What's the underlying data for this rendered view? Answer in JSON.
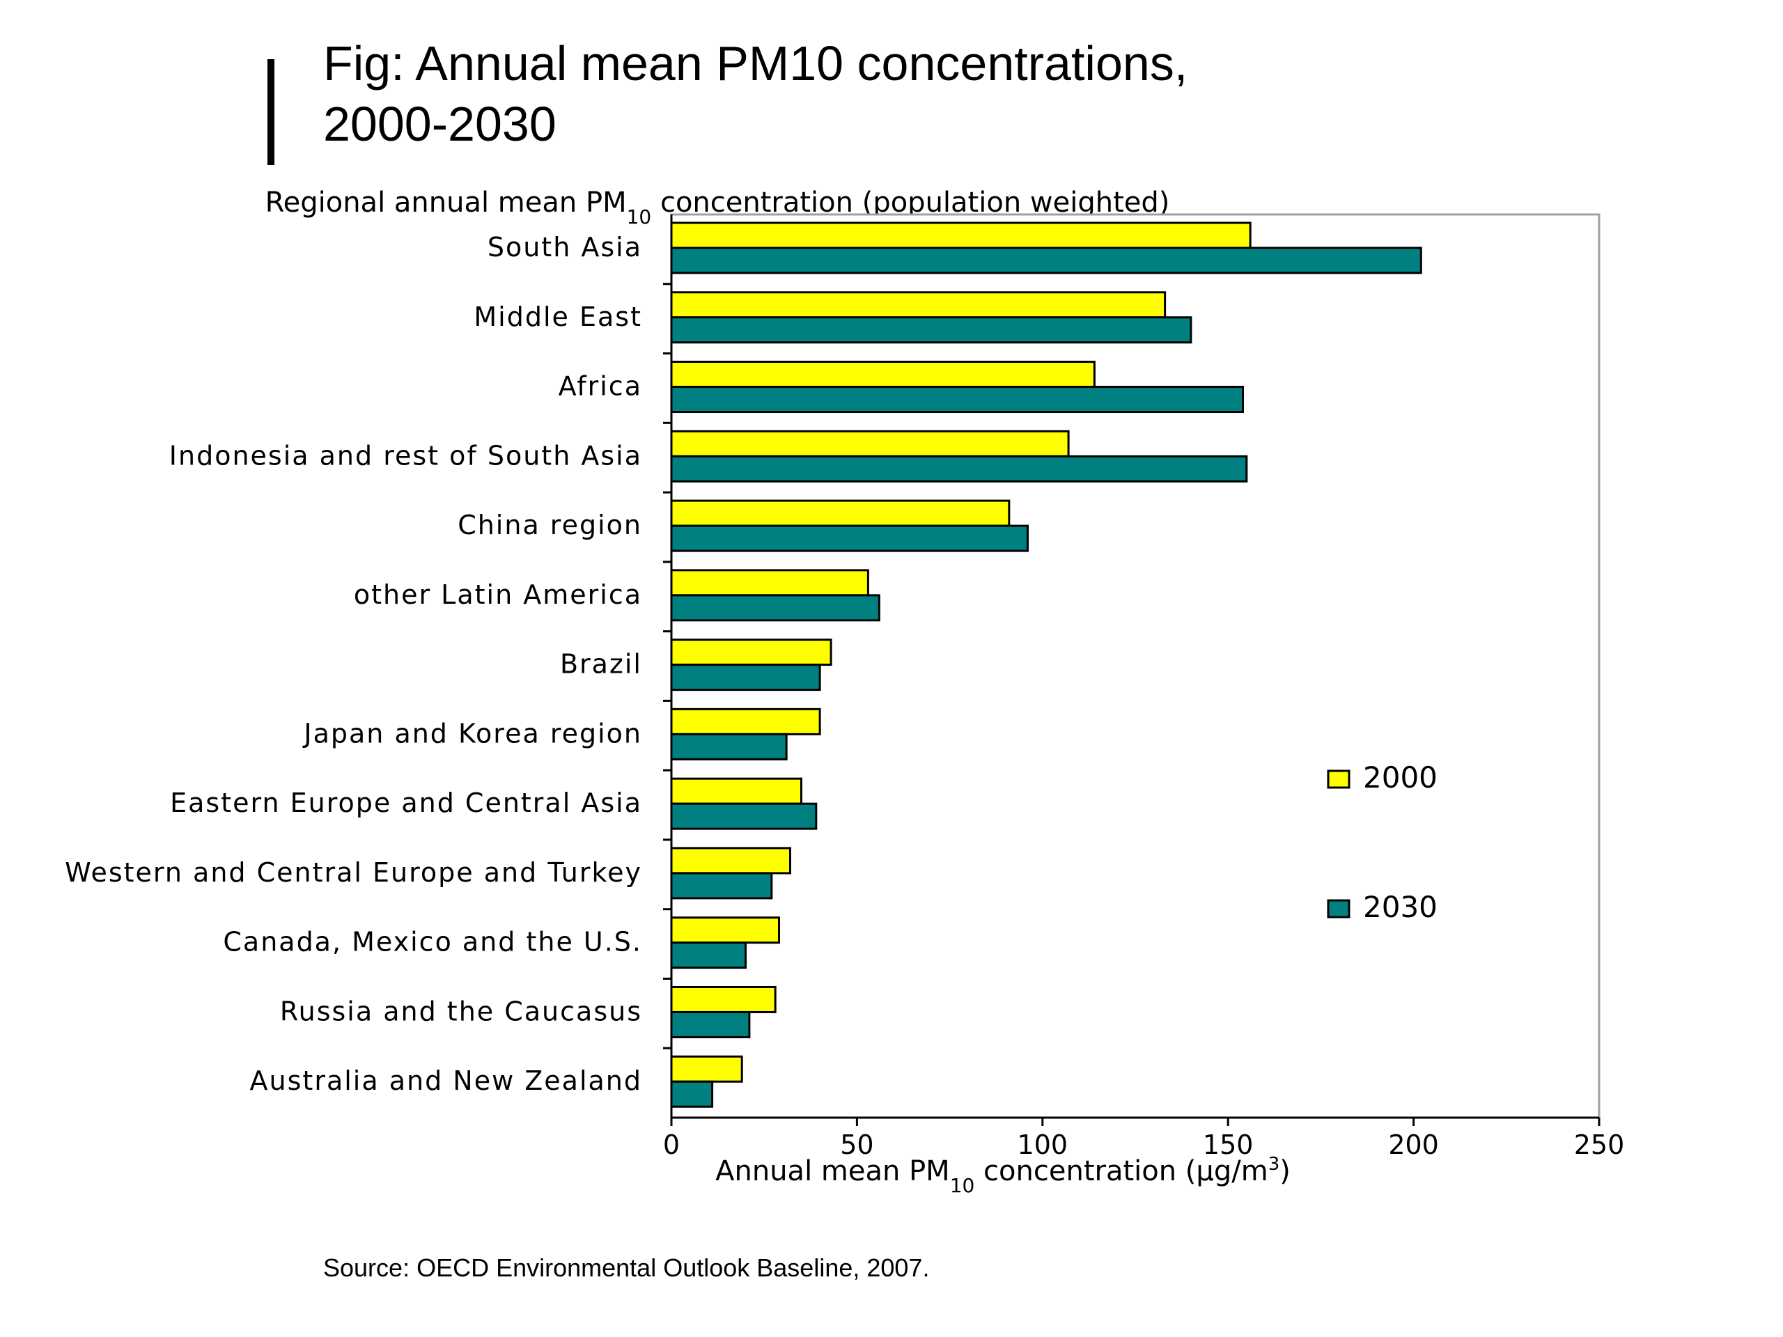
{
  "slide": {
    "title_line1": "Fig: Annual mean PM10 concentrations,",
    "title_line2": "2000-2030",
    "source": "Source: OECD Environmental Outlook Baseline, 2007."
  },
  "chart_data": {
    "type": "bar",
    "orientation": "horizontal",
    "title": "Regional annual mean PM10 concentration (population weighted)",
    "xlabel": "Annual mean PM10 concentration (µg/m3)",
    "ylabel": "",
    "xlim": [
      0,
      250
    ],
    "xticks": [
      "0",
      "50",
      "100",
      "150",
      "200",
      "250"
    ],
    "grid": false,
    "legend_position": "right",
    "categories": [
      "South Asia",
      "Middle East",
      "Africa",
      "Indonesia and rest of South Asia",
      "China region",
      "other Latin America",
      "Brazil",
      "Japan and Korea region",
      "Eastern Europe and Central Asia",
      "Western and Central Europe and Turkey",
      "Canada, Mexico and the U.S.",
      "Russia and the Caucasus",
      "Australia and New Zealand"
    ],
    "series": [
      {
        "name": "2000",
        "color": "#FFFF00",
        "values": [
          156,
          133,
          114,
          107,
          91,
          53,
          43,
          40,
          35,
          32,
          29,
          28,
          19
        ]
      },
      {
        "name": "2030",
        "color": "#008080",
        "values": [
          202,
          140,
          154,
          155,
          96,
          56,
          40,
          31,
          39,
          27,
          20,
          21,
          11
        ]
      }
    ]
  }
}
